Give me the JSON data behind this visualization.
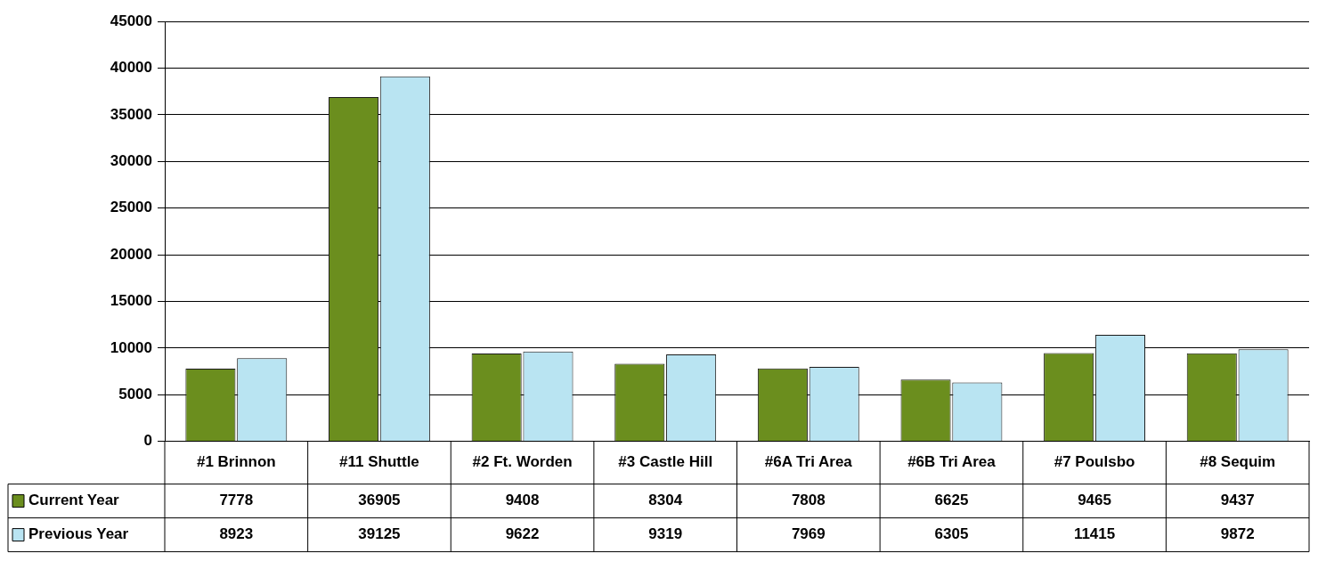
{
  "chart_data": {
    "type": "bar",
    "categories": [
      "#1 Brinnon",
      "#11 Shuttle",
      "#2 Ft. Worden",
      "#3 Castle Hill",
      "#6A Tri Area",
      "#6B Tri Area",
      "#7 Poulsbo",
      "#8 Sequim"
    ],
    "series": [
      {
        "name": "Current Year",
        "color": "#6b8e1e",
        "values": [
          7778,
          36905,
          9408,
          8304,
          7808,
          6625,
          9465,
          9437
        ]
      },
      {
        "name": "Previous Year",
        "color": "#b9e4f2",
        "values": [
          8923,
          39125,
          9622,
          9319,
          7969,
          6305,
          11415,
          9872
        ]
      }
    ],
    "ylim": [
      0,
      45000
    ],
    "yticks": [
      0,
      5000,
      10000,
      15000,
      20000,
      25000,
      30000,
      35000,
      40000,
      45000
    ],
    "grid": "y",
    "legend": "bottom",
    "data_labels": true
  }
}
